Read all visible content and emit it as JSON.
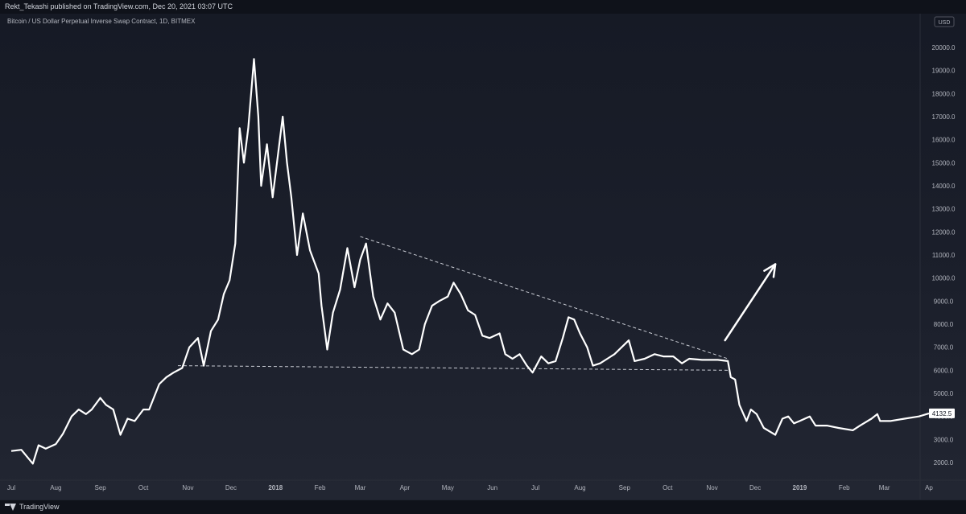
{
  "header": {
    "publisher_line": "Rekt_Tekashi published on TradingView.com, Dec 20, 2021 03:07 UTC"
  },
  "footer": {
    "brand": "TradingView"
  },
  "colors": {
    "background": "#131722",
    "price_line": "#ffffff",
    "axis_text": "#b2b5be",
    "price_tag_bg": "#ffffff",
    "price_tag_text": "#131722"
  },
  "chart_data": {
    "type": "line",
    "title": "Bitcoin / US Dollar Perpetual Inverse Swap Contract, 1D, BITMEX",
    "currency_label": "USD",
    "last_price": "4132.5",
    "ylim": [
      1500,
      21000
    ],
    "y_ticks": [
      {
        "value": 2000,
        "label": "2000.0"
      },
      {
        "value": 3000,
        "label": "3000.0"
      },
      {
        "value": 4000,
        "label": "4000.0"
      },
      {
        "value": 5000,
        "label": "5000.0"
      },
      {
        "value": 6000,
        "label": "6000.0"
      },
      {
        "value": 7000,
        "label": "7000.0"
      },
      {
        "value": 8000,
        "label": "8000.0"
      },
      {
        "value": 9000,
        "label": "9000.0"
      },
      {
        "value": 10000,
        "label": "10000.0"
      },
      {
        "value": 11000,
        "label": "11000.0"
      },
      {
        "value": 12000,
        "label": "12000.0"
      },
      {
        "value": 13000,
        "label": "13000.0"
      },
      {
        "value": 14000,
        "label": "14000.0"
      },
      {
        "value": 15000,
        "label": "15000.0"
      },
      {
        "value": 16000,
        "label": "16000.0"
      },
      {
        "value": 17000,
        "label": "17000.0"
      },
      {
        "value": 18000,
        "label": "18000.0"
      },
      {
        "value": 19000,
        "label": "19000.0"
      },
      {
        "value": 20000,
        "label": "20000.0"
      }
    ],
    "x_range": [
      "2017-07-01",
      "2019-04-01"
    ],
    "x_ticks": [
      {
        "date": "2017-07-01",
        "label": "Jul"
      },
      {
        "date": "2017-08-01",
        "label": "Aug"
      },
      {
        "date": "2017-09-01",
        "label": "Sep"
      },
      {
        "date": "2017-10-01",
        "label": "Oct"
      },
      {
        "date": "2017-11-01",
        "label": "Nov"
      },
      {
        "date": "2017-12-01",
        "label": "Dec"
      },
      {
        "date": "2018-01-01",
        "label": "2018"
      },
      {
        "date": "2018-02-01",
        "label": "Feb"
      },
      {
        "date": "2018-03-01",
        "label": "Mar"
      },
      {
        "date": "2018-04-01",
        "label": "Apr"
      },
      {
        "date": "2018-05-01",
        "label": "May"
      },
      {
        "date": "2018-06-01",
        "label": "Jun"
      },
      {
        "date": "2018-07-01",
        "label": "Jul"
      },
      {
        "date": "2018-08-01",
        "label": "Aug"
      },
      {
        "date": "2018-09-01",
        "label": "Sep"
      },
      {
        "date": "2018-10-01",
        "label": "Oct"
      },
      {
        "date": "2018-11-01",
        "label": "Nov"
      },
      {
        "date": "2018-12-01",
        "label": "Dec"
      },
      {
        "date": "2019-01-01",
        "label": "2019"
      },
      {
        "date": "2019-02-01",
        "label": "Feb"
      },
      {
        "date": "2019-03-01",
        "label": "Mar"
      },
      {
        "date": "2019-04-01",
        "label": "Ap"
      }
    ],
    "series": [
      {
        "points": [
          [
            "2017-07-01",
            2500
          ],
          [
            "2017-07-08",
            2550
          ],
          [
            "2017-07-16",
            1950
          ],
          [
            "2017-07-20",
            2750
          ],
          [
            "2017-07-25",
            2600
          ],
          [
            "2017-08-01",
            2800
          ],
          [
            "2017-08-06",
            3250
          ],
          [
            "2017-08-12",
            4000
          ],
          [
            "2017-08-17",
            4300
          ],
          [
            "2017-08-22",
            4100
          ],
          [
            "2017-08-26",
            4300
          ],
          [
            "2017-09-01",
            4800
          ],
          [
            "2017-09-05",
            4500
          ],
          [
            "2017-09-10",
            4300
          ],
          [
            "2017-09-15",
            3200
          ],
          [
            "2017-09-20",
            3900
          ],
          [
            "2017-09-25",
            3800
          ],
          [
            "2017-10-01",
            4300
          ],
          [
            "2017-10-05",
            4300
          ],
          [
            "2017-10-12",
            5400
          ],
          [
            "2017-10-17",
            5700
          ],
          [
            "2017-10-22",
            5900
          ],
          [
            "2017-10-28",
            6100
          ],
          [
            "2017-11-02",
            7000
          ],
          [
            "2017-11-08",
            7400
          ],
          [
            "2017-11-12",
            6200
          ],
          [
            "2017-11-17",
            7700
          ],
          [
            "2017-11-22",
            8200
          ],
          [
            "2017-11-26",
            9300
          ],
          [
            "2017-11-30",
            9900
          ],
          [
            "2017-12-04",
            11500
          ],
          [
            "2017-12-07",
            16500
          ],
          [
            "2017-12-10",
            15000
          ],
          [
            "2017-12-13",
            16500
          ],
          [
            "2017-12-17",
            19500
          ],
          [
            "2017-12-20",
            17000
          ],
          [
            "2017-12-22",
            14000
          ],
          [
            "2017-12-26",
            15800
          ],
          [
            "2017-12-30",
            13500
          ],
          [
            "2018-01-06",
            17000
          ],
          [
            "2018-01-09",
            15000
          ],
          [
            "2018-01-12",
            13500
          ],
          [
            "2018-01-16",
            11000
          ],
          [
            "2018-01-20",
            12800
          ],
          [
            "2018-01-25",
            11200
          ],
          [
            "2018-01-31",
            10200
          ],
          [
            "2018-02-02",
            8800
          ],
          [
            "2018-02-06",
            6900
          ],
          [
            "2018-02-10",
            8500
          ],
          [
            "2018-02-15",
            9500
          ],
          [
            "2018-02-20",
            11300
          ],
          [
            "2018-02-25",
            9600
          ],
          [
            "2018-03-01",
            10800
          ],
          [
            "2018-03-05",
            11500
          ],
          [
            "2018-03-10",
            9200
          ],
          [
            "2018-03-15",
            8200
          ],
          [
            "2018-03-20",
            8900
          ],
          [
            "2018-03-25",
            8500
          ],
          [
            "2018-03-31",
            6900
          ],
          [
            "2018-04-06",
            6700
          ],
          [
            "2018-04-11",
            6900
          ],
          [
            "2018-04-15",
            8000
          ],
          [
            "2018-04-20",
            8800
          ],
          [
            "2018-04-25",
            9000
          ],
          [
            "2018-05-01",
            9200
          ],
          [
            "2018-05-05",
            9800
          ],
          [
            "2018-05-10",
            9300
          ],
          [
            "2018-05-15",
            8600
          ],
          [
            "2018-05-20",
            8400
          ],
          [
            "2018-05-25",
            7500
          ],
          [
            "2018-05-30",
            7400
          ],
          [
            "2018-06-06",
            7600
          ],
          [
            "2018-06-10",
            6700
          ],
          [
            "2018-06-15",
            6500
          ],
          [
            "2018-06-20",
            6700
          ],
          [
            "2018-06-25",
            6200
          ],
          [
            "2018-06-29",
            5900
          ],
          [
            "2018-07-05",
            6600
          ],
          [
            "2018-07-10",
            6300
          ],
          [
            "2018-07-15",
            6400
          ],
          [
            "2018-07-20",
            7400
          ],
          [
            "2018-07-24",
            8300
          ],
          [
            "2018-07-28",
            8200
          ],
          [
            "2018-08-01",
            7600
          ],
          [
            "2018-08-06",
            7000
          ],
          [
            "2018-08-10",
            6200
          ],
          [
            "2018-08-15",
            6300
          ],
          [
            "2018-08-20",
            6500
          ],
          [
            "2018-08-25",
            6700
          ],
          [
            "2018-08-30",
            7000
          ],
          [
            "2018-09-04",
            7300
          ],
          [
            "2018-09-08",
            6400
          ],
          [
            "2018-09-15",
            6500
          ],
          [
            "2018-09-22",
            6700
          ],
          [
            "2018-09-28",
            6600
          ],
          [
            "2018-10-05",
            6600
          ],
          [
            "2018-10-11",
            6300
          ],
          [
            "2018-10-16",
            6500
          ],
          [
            "2018-10-25",
            6450
          ],
          [
            "2018-11-05",
            6450
          ],
          [
            "2018-11-12",
            6400
          ],
          [
            "2018-11-14",
            5700
          ],
          [
            "2018-11-17",
            5600
          ],
          [
            "2018-11-20",
            4500
          ],
          [
            "2018-11-25",
            3800
          ],
          [
            "2018-11-28",
            4300
          ],
          [
            "2018-12-02",
            4100
          ],
          [
            "2018-12-07",
            3500
          ],
          [
            "2018-12-15",
            3200
          ],
          [
            "2018-12-20",
            3900
          ],
          [
            "2018-12-24",
            4000
          ],
          [
            "2018-12-28",
            3700
          ],
          [
            "2019-01-01",
            3800
          ],
          [
            "2019-01-08",
            4000
          ],
          [
            "2019-01-12",
            3600
          ],
          [
            "2019-01-20",
            3600
          ],
          [
            "2019-01-28",
            3500
          ],
          [
            "2019-02-07",
            3400
          ],
          [
            "2019-02-12",
            3600
          ],
          [
            "2019-02-20",
            3900
          ],
          [
            "2019-02-24",
            4100
          ],
          [
            "2019-02-26",
            3800
          ],
          [
            "2019-03-05",
            3800
          ],
          [
            "2019-03-15",
            3900
          ],
          [
            "2019-03-25",
            4000
          ],
          [
            "2019-04-01",
            4132.5
          ]
        ]
      }
    ],
    "annotations": [
      {
        "type": "dashed_line",
        "from": [
          "2018-03-01",
          11800
        ],
        "to": [
          "2018-11-12",
          6500
        ]
      },
      {
        "type": "dashed_line",
        "from": [
          "2017-10-25",
          6200
        ],
        "to": [
          "2018-11-12",
          6000
        ]
      },
      {
        "type": "arrow",
        "from": [
          "2018-11-10",
          7300
        ],
        "to": [
          "2018-12-15",
          10600
        ]
      }
    ]
  }
}
